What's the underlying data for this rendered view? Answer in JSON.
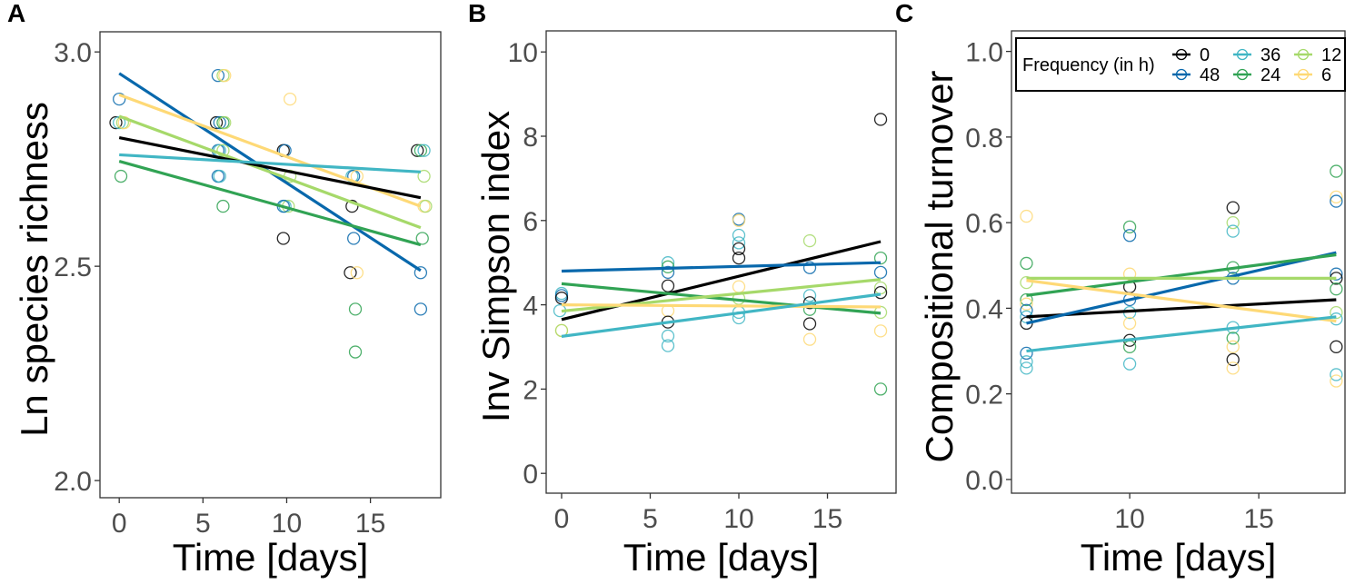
{
  "chart_data": {
    "legend": {
      "title": "Frequency (in h)",
      "placement": "top-right of panel C",
      "entries": [
        {
          "label": "0",
          "color": "#000000"
        },
        {
          "label": "48",
          "color": "#0868ac"
        },
        {
          "label": "36",
          "color": "#41b6c4"
        },
        {
          "label": "24",
          "color": "#31a354"
        },
        {
          "label": "12",
          "color": "#a6d96a"
        },
        {
          "label": "6",
          "color": "#fed976"
        }
      ]
    },
    "panels": [
      {
        "panel_label": "A",
        "type": "scatter+line",
        "xlabel": "Time [days]",
        "ylabel": "Ln species richness",
        "xlim": [
          -1.15,
          19.2
        ],
        "ylim": [
          1.96,
          3.047
        ],
        "xticks": [
          "0",
          "5",
          "10",
          "15"
        ],
        "xtick_values": [
          0,
          5,
          10,
          15
        ],
        "yticks": [
          "2.0",
          "2.5",
          "3.0"
        ],
        "ytick_values": [
          2.0,
          2.5,
          3.0
        ],
        "lines": [
          {
            "name": "48",
            "x": [
              0,
              18
            ],
            "y": [
              2.95,
              2.49
            ]
          },
          {
            "name": "6",
            "x": [
              0,
              18
            ],
            "y": [
              2.9,
              2.64
            ]
          },
          {
            "name": "12",
            "x": [
              0,
              18
            ],
            "y": [
              2.85,
              2.59
            ]
          },
          {
            "name": "0",
            "x": [
              0,
              18
            ],
            "y": [
              2.8,
              2.66
            ]
          },
          {
            "name": "36",
            "x": [
              0,
              18
            ],
            "y": [
              2.76,
              2.72
            ]
          },
          {
            "name": "24",
            "x": [
              0,
              18
            ],
            "y": [
              2.745,
              2.55
            ]
          }
        ],
        "points": [
          [
            0,
            2.89,
            "48"
          ],
          [
            -0.2,
            2.835,
            "0"
          ],
          [
            0,
            2.835,
            "36"
          ],
          [
            0.2,
            2.835,
            "12"
          ],
          [
            0.3,
            2.835,
            "6"
          ],
          [
            0.1,
            2.71,
            "24"
          ],
          [
            5.9,
            2.945,
            "48"
          ],
          [
            6.2,
            2.945,
            "12"
          ],
          [
            6.3,
            2.945,
            "6"
          ],
          [
            5.8,
            2.835,
            "0"
          ],
          [
            6,
            2.835,
            "48"
          ],
          [
            6.2,
            2.835,
            "24"
          ],
          [
            6.3,
            2.835,
            "12"
          ],
          [
            5.9,
            2.77,
            "48"
          ],
          [
            6,
            2.77,
            "36"
          ],
          [
            6.2,
            2.77,
            "12"
          ],
          [
            5.9,
            2.71,
            "48"
          ],
          [
            6,
            2.71,
            "36"
          ],
          [
            6.2,
            2.64,
            "24"
          ],
          [
            10.2,
            2.89,
            "6"
          ],
          [
            9.8,
            2.77,
            "0"
          ],
          [
            9.9,
            2.77,
            "48"
          ],
          [
            10.2,
            2.71,
            "12"
          ],
          [
            9.9,
            2.64,
            "36"
          ],
          [
            10.1,
            2.64,
            "12"
          ],
          [
            9.8,
            2.64,
            "48"
          ],
          [
            9.8,
            2.565,
            "0"
          ],
          [
            13.9,
            2.71,
            "36"
          ],
          [
            14,
            2.71,
            "48"
          ],
          [
            14.2,
            2.71,
            "6"
          ],
          [
            13.9,
            2.64,
            "0"
          ],
          [
            14,
            2.565,
            "48"
          ],
          [
            13.8,
            2.485,
            "0"
          ],
          [
            14.2,
            2.485,
            "6"
          ],
          [
            14.1,
            2.4,
            "24"
          ],
          [
            14.1,
            2.3,
            "24"
          ],
          [
            17.8,
            2.77,
            "0"
          ],
          [
            18,
            2.77,
            "24"
          ],
          [
            18.2,
            2.77,
            "36"
          ],
          [
            18.2,
            2.71,
            "12"
          ],
          [
            18.2,
            2.64,
            "6"
          ],
          [
            18.3,
            2.64,
            "12"
          ],
          [
            18.1,
            2.565,
            "24"
          ],
          [
            18,
            2.485,
            "48"
          ],
          [
            18,
            2.4,
            "48"
          ]
        ]
      },
      {
        "panel_label": "B",
        "type": "scatter+line",
        "xlabel": "Time [days]",
        "ylabel": "Inv Simpson index",
        "xlim": [
          -0.87,
          18.87
        ],
        "ylim": [
          -0.47,
          10.5
        ],
        "xticks": [
          "0",
          "5",
          "10",
          "15"
        ],
        "xtick_values": [
          0,
          5,
          10,
          15
        ],
        "yticks": [
          "0",
          "2",
          "4",
          "6",
          "8",
          "10"
        ],
        "ytick_values": [
          0,
          2,
          4,
          6,
          8,
          10
        ],
        "lines": [
          {
            "name": "0",
            "x": [
              0,
              18
            ],
            "y": [
              3.65,
              5.5
            ]
          },
          {
            "name": "48",
            "x": [
              0,
              18
            ],
            "y": [
              4.8,
              5.0
            ]
          },
          {
            "name": "24",
            "x": [
              0,
              18
            ],
            "y": [
              4.5,
              3.8
            ]
          },
          {
            "name": "12",
            "x": [
              0,
              18
            ],
            "y": [
              3.85,
              4.6
            ]
          },
          {
            "name": "6",
            "x": [
              0,
              18
            ],
            "y": [
              4.0,
              3.95
            ]
          },
          {
            "name": "36",
            "x": [
              0,
              18
            ],
            "y": [
              3.25,
              4.25
            ]
          }
        ],
        "points": [
          [
            0,
            4.27,
            "36"
          ],
          [
            0,
            4.22,
            "48"
          ],
          [
            0,
            4.16,
            "0"
          ],
          [
            -0.1,
            3.86,
            "36"
          ],
          [
            0,
            3.39,
            "6"
          ],
          [
            0,
            3.39,
            "12"
          ],
          [
            6,
            5.0,
            "36"
          ],
          [
            6,
            4.9,
            "24"
          ],
          [
            6,
            4.77,
            "48"
          ],
          [
            6,
            4.45,
            "0"
          ],
          [
            6,
            3.86,
            "6"
          ],
          [
            6,
            3.59,
            "0"
          ],
          [
            6,
            3.26,
            "36"
          ],
          [
            6,
            3.03,
            "36"
          ],
          [
            10,
            6.03,
            "48"
          ],
          [
            10,
            6.0,
            "6"
          ],
          [
            10,
            5.65,
            "36"
          ],
          [
            10,
            5.47,
            "36"
          ],
          [
            10,
            5.33,
            "0"
          ],
          [
            10,
            5.11,
            "0"
          ],
          [
            10,
            4.43,
            "6"
          ],
          [
            10,
            4.15,
            "12"
          ],
          [
            10,
            3.82,
            "36"
          ],
          [
            10,
            3.69,
            "36"
          ],
          [
            14,
            5.52,
            "12"
          ],
          [
            14,
            4.88,
            "48"
          ],
          [
            14,
            4.22,
            "36"
          ],
          [
            14,
            4.05,
            "0"
          ],
          [
            14,
            3.89,
            "24"
          ],
          [
            14,
            3.55,
            "0"
          ],
          [
            14,
            3.18,
            "6"
          ],
          [
            18,
            8.4,
            "0"
          ],
          [
            18,
            5.11,
            "24"
          ],
          [
            18,
            4.77,
            "48"
          ],
          [
            18,
            4.4,
            "12"
          ],
          [
            18,
            4.29,
            "0"
          ],
          [
            18,
            3.82,
            "12"
          ],
          [
            18,
            3.38,
            "6"
          ],
          [
            18,
            2.0,
            "24"
          ]
        ]
      },
      {
        "panel_label": "C",
        "type": "scatter+line",
        "xlabel": "Time [days]",
        "ylabel": "Compositional turnover",
        "xlim": [
          5.42,
          18.34
        ],
        "ylim": [
          -0.032,
          1.048
        ],
        "xticks": [
          "10",
          "15"
        ],
        "xtick_values": [
          10,
          15
        ],
        "yticks": [
          "0.0",
          "0.2",
          "0.4",
          "0.6",
          "0.8",
          "1.0"
        ],
        "ytick_values": [
          0,
          0.2,
          0.4,
          0.6,
          0.8,
          1.0
        ],
        "lines": [
          {
            "name": "0",
            "x": [
              6,
              18
            ],
            "y": [
              0.38,
              0.42
            ]
          },
          {
            "name": "48",
            "x": [
              6,
              18
            ],
            "y": [
              0.365,
              0.53
            ]
          },
          {
            "name": "24",
            "x": [
              6,
              18
            ],
            "y": [
              0.43,
              0.525
            ]
          },
          {
            "name": "12",
            "x": [
              6,
              18
            ],
            "y": [
              0.47,
              0.47
            ]
          },
          {
            "name": "6",
            "x": [
              6,
              18
            ],
            "y": [
              0.465,
              0.37
            ]
          },
          {
            "name": "36",
            "x": [
              6,
              18
            ],
            "y": [
              0.3,
              0.38
            ]
          }
        ],
        "points": [
          [
            6,
            0.615,
            "6"
          ],
          [
            6,
            0.505,
            "24"
          ],
          [
            6,
            0.46,
            "12"
          ],
          [
            6,
            0.42,
            "24"
          ],
          [
            6,
            0.41,
            "6"
          ],
          [
            6,
            0.395,
            "48"
          ],
          [
            6,
            0.38,
            "36"
          ],
          [
            6,
            0.365,
            "0"
          ],
          [
            6,
            0.295,
            "48"
          ],
          [
            6,
            0.275,
            "36"
          ],
          [
            6,
            0.26,
            "36"
          ],
          [
            10,
            0.59,
            "24"
          ],
          [
            10,
            0.57,
            "48"
          ],
          [
            10,
            0.48,
            "6"
          ],
          [
            10,
            0.45,
            "0"
          ],
          [
            10,
            0.42,
            "48"
          ],
          [
            10,
            0.39,
            "36"
          ],
          [
            10,
            0.365,
            "6"
          ],
          [
            10,
            0.325,
            "0"
          ],
          [
            10,
            0.31,
            "24"
          ],
          [
            10,
            0.27,
            "36"
          ],
          [
            14,
            0.635,
            "0"
          ],
          [
            14,
            0.6,
            "12"
          ],
          [
            14,
            0.58,
            "36"
          ],
          [
            14,
            0.495,
            "24"
          ],
          [
            14,
            0.47,
            "48"
          ],
          [
            14,
            0.355,
            "36"
          ],
          [
            14,
            0.33,
            "24"
          ],
          [
            14,
            0.31,
            "6"
          ],
          [
            14,
            0.28,
            "0"
          ],
          [
            14,
            0.26,
            "6"
          ],
          [
            18,
            0.72,
            "24"
          ],
          [
            18,
            0.66,
            "6"
          ],
          [
            18,
            0.65,
            "48"
          ],
          [
            18,
            0.48,
            "48"
          ],
          [
            18,
            0.47,
            "0"
          ],
          [
            18,
            0.445,
            "24"
          ],
          [
            18,
            0.39,
            "12"
          ],
          [
            18,
            0.375,
            "36"
          ],
          [
            18,
            0.31,
            "0"
          ],
          [
            18,
            0.245,
            "36"
          ],
          [
            18,
            0.23,
            "6"
          ]
        ]
      }
    ]
  }
}
